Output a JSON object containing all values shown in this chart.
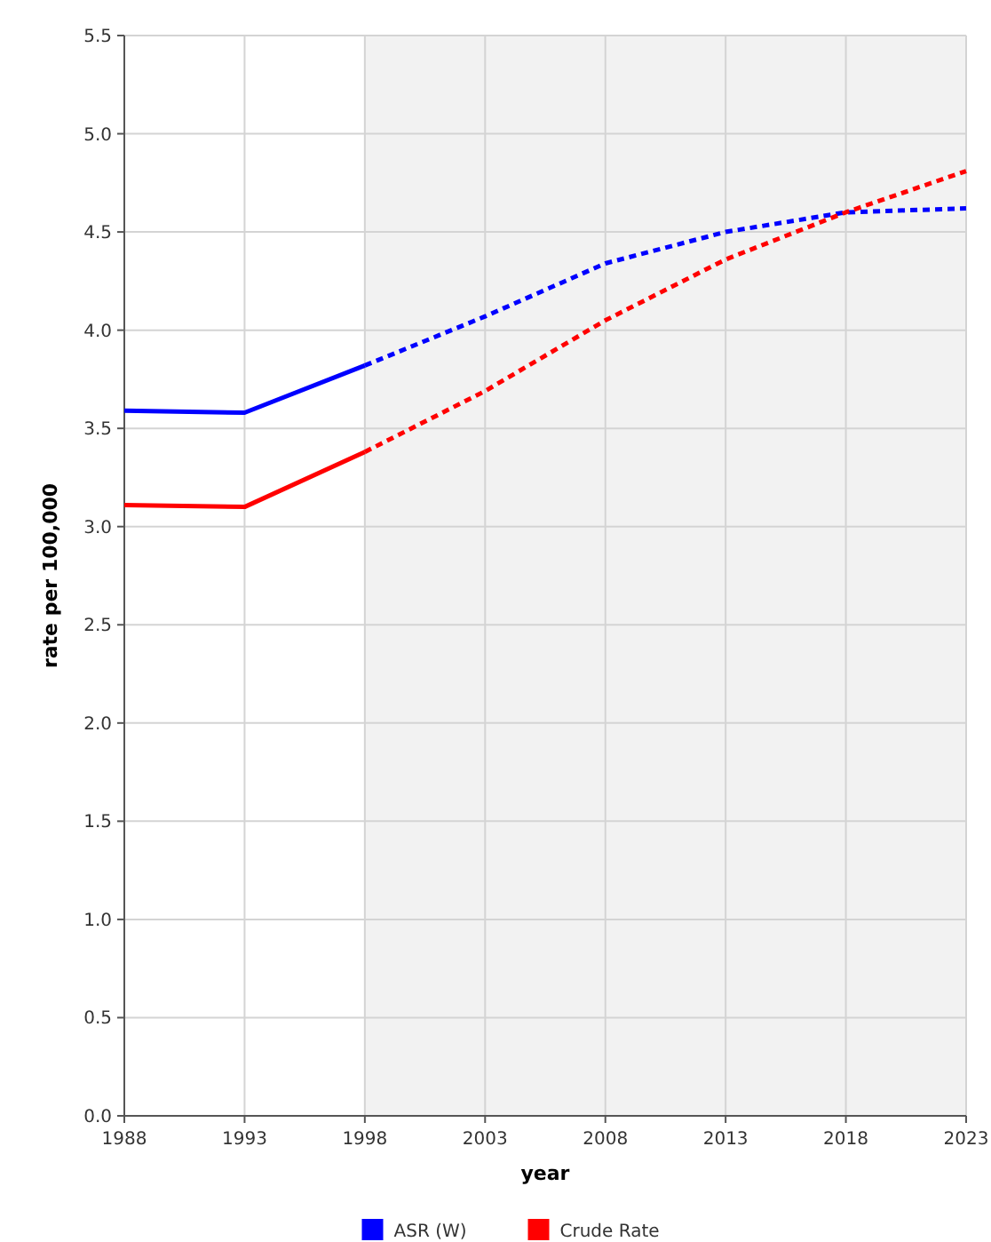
{
  "chart_data": {
    "type": "line",
    "xlabel": "year",
    "ylabel": "rate per 100,000",
    "x": [
      1988,
      1993,
      1998,
      2003,
      2008,
      2013,
      2018,
      2023
    ],
    "series": [
      {
        "name": "ASR (W)",
        "color": "#0000ff",
        "line_style": "solid",
        "values": [
          3.59,
          3.58,
          3.82,
          null,
          null,
          null,
          null,
          null
        ]
      },
      {
        "name": "Crude Rate",
        "color": "#ff0000",
        "line_style": "solid",
        "values": [
          3.11,
          3.1,
          3.38,
          null,
          null,
          null,
          null,
          null
        ]
      },
      {
        "color": "#0000ff",
        "line_style": "dotted",
        "values": [
          null,
          null,
          3.82,
          4.07,
          4.34,
          4.5,
          4.6,
          4.62
        ]
      },
      {
        "color": "#ff0000",
        "line_style": "dotted",
        "values": [
          null,
          null,
          3.38,
          3.69,
          4.05,
          4.36,
          4.6,
          4.81
        ]
      }
    ],
    "xlim": [
      1988,
      2023
    ],
    "xticks": [
      1988,
      1993,
      1998,
      2003,
      2008,
      2013,
      2018,
      2023
    ],
    "ylim": [
      0,
      5.5
    ],
    "yticks": [
      {
        "value": 0,
        "label": "0.0"
      },
      {
        "value": 0.5,
        "label": "0.5"
      },
      {
        "value": 1,
        "label": "1.0"
      },
      {
        "value": 1.5,
        "label": "1.5"
      },
      {
        "value": 2,
        "label": "2.0"
      },
      {
        "value": 2.5,
        "label": "2.5"
      },
      {
        "value": 3,
        "label": "3.0"
      },
      {
        "value": 3.5,
        "label": "3.5"
      },
      {
        "value": 4,
        "label": "4.0"
      },
      {
        "value": 4.5,
        "label": "4.5"
      },
      {
        "value": 5,
        "label": "5.0"
      },
      {
        "value": 5.5,
        "label": "5.5"
      }
    ],
    "bands": [
      {
        "axis": "x",
        "from": 1998,
        "to": 2023,
        "color": "#f2f2f2"
      }
    ],
    "grid": true,
    "legend": "bottom",
    "marker": "none"
  }
}
